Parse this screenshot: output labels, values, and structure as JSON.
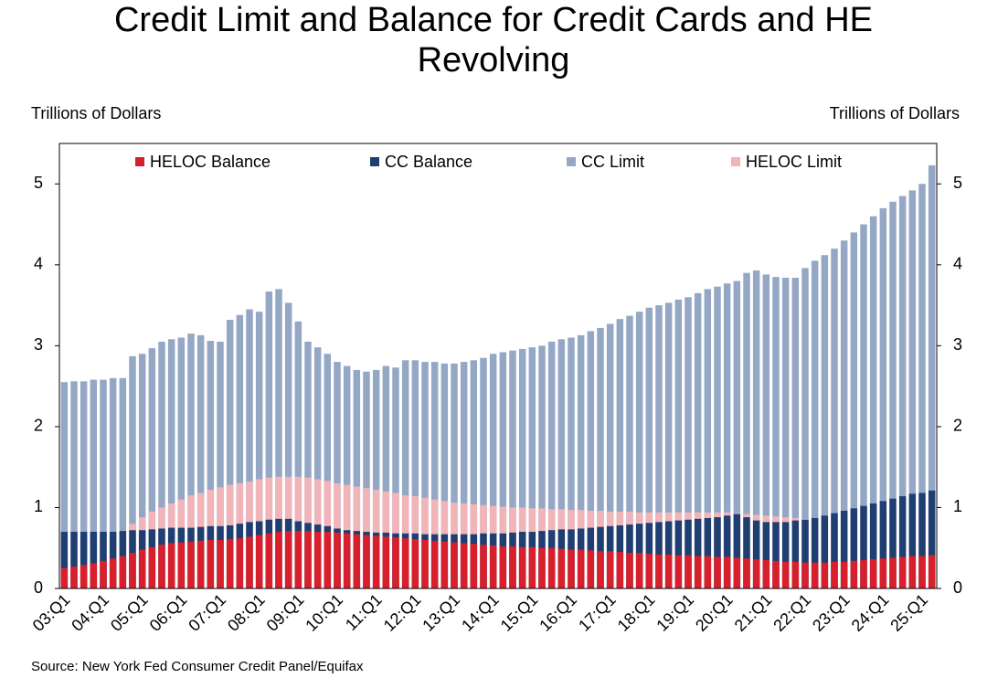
{
  "chart_data": {
    "type": "bar",
    "title": "Credit Limit and Balance for Credit Cards and HE Revolving",
    "y_label": "Trillions of Dollars",
    "y2_label": "Trillions of Dollars",
    "source": "Source: New York Fed Consumer Credit Panel/Equifax",
    "categories": [
      "03:Q1",
      null,
      null,
      null,
      "04:Q1",
      null,
      null,
      null,
      "05:Q1",
      null,
      null,
      null,
      "06:Q1",
      null,
      null,
      null,
      "07:Q1",
      null,
      null,
      null,
      "08:Q1",
      null,
      null,
      null,
      "09:Q1",
      null,
      null,
      null,
      "10:Q1",
      null,
      null,
      null,
      "11:Q1",
      null,
      null,
      null,
      "12:Q1",
      null,
      null,
      null,
      "13:Q1",
      null,
      null,
      null,
      "14:Q1",
      null,
      null,
      null,
      "15:Q1",
      null,
      null,
      null,
      "16:Q1",
      null,
      null,
      null,
      "17:Q1",
      null,
      null,
      null,
      "18:Q1",
      null,
      null,
      null,
      "19:Q1",
      null,
      null,
      null,
      "20:Q1",
      null,
      null,
      null,
      "21:Q1",
      null,
      null,
      null,
      "22:Q1",
      null,
      null,
      null,
      "23:Q1",
      null,
      null,
      null,
      "24:Q1",
      null,
      null,
      null,
      "25:Q1",
      null
    ],
    "series": [
      {
        "name": "HELOC Balance",
        "color": "#d7202b",
        "values": [
          0.25,
          0.27,
          0.29,
          0.31,
          0.34,
          0.37,
          0.4,
          0.44,
          0.48,
          0.51,
          0.54,
          0.56,
          0.57,
          0.58,
          0.59,
          0.6,
          0.6,
          0.61,
          0.62,
          0.64,
          0.66,
          0.68,
          0.7,
          0.71,
          0.71,
          0.71,
          0.7,
          0.7,
          0.69,
          0.68,
          0.67,
          0.66,
          0.65,
          0.64,
          0.63,
          0.62,
          0.61,
          0.6,
          0.59,
          0.58,
          0.57,
          0.56,
          0.55,
          0.54,
          0.53,
          0.52,
          0.52,
          0.51,
          0.51,
          0.5,
          0.5,
          0.49,
          0.48,
          0.48,
          0.47,
          0.46,
          0.46,
          0.45,
          0.44,
          0.44,
          0.43,
          0.42,
          0.42,
          0.41,
          0.41,
          0.4,
          0.4,
          0.39,
          0.39,
          0.38,
          0.37,
          0.36,
          0.35,
          0.34,
          0.33,
          0.33,
          0.32,
          0.32,
          0.32,
          0.33,
          0.33,
          0.34,
          0.35,
          0.36,
          0.37,
          0.38,
          0.39,
          0.4,
          0.4,
          0.41
        ]
      },
      {
        "name": "CC Balance",
        "color": "#1f3e72",
        "values": [
          0.7,
          0.7,
          0.7,
          0.7,
          0.7,
          0.7,
          0.71,
          0.72,
          0.72,
          0.73,
          0.74,
          0.75,
          0.75,
          0.75,
          0.76,
          0.77,
          0.77,
          0.78,
          0.8,
          0.82,
          0.83,
          0.85,
          0.86,
          0.86,
          0.83,
          0.81,
          0.79,
          0.77,
          0.74,
          0.72,
          0.71,
          0.7,
          0.69,
          0.69,
          0.68,
          0.68,
          0.68,
          0.67,
          0.67,
          0.67,
          0.67,
          0.67,
          0.67,
          0.68,
          0.68,
          0.68,
          0.69,
          0.7,
          0.7,
          0.71,
          0.72,
          0.73,
          0.73,
          0.74,
          0.75,
          0.76,
          0.77,
          0.78,
          0.79,
          0.8,
          0.81,
          0.82,
          0.83,
          0.84,
          0.85,
          0.86,
          0.87,
          0.88,
          0.9,
          0.92,
          0.88,
          0.84,
          0.82,
          0.82,
          0.82,
          0.84,
          0.85,
          0.87,
          0.9,
          0.93,
          0.96,
          0.99,
          1.02,
          1.05,
          1.08,
          1.11,
          1.14,
          1.17,
          1.18,
          1.21
        ]
      },
      {
        "name": "CC Limit",
        "color": "#94a7c5",
        "values": [
          2.55,
          2.56,
          2.56,
          2.58,
          2.58,
          2.6,
          2.6,
          2.87,
          2.9,
          2.97,
          3.05,
          3.08,
          3.1,
          3.15,
          3.13,
          3.06,
          3.05,
          3.32,
          3.38,
          3.45,
          3.42,
          3.67,
          3.7,
          3.53,
          3.3,
          3.05,
          2.98,
          2.9,
          2.8,
          2.75,
          2.7,
          2.68,
          2.7,
          2.75,
          2.73,
          2.82,
          2.82,
          2.8,
          2.8,
          2.78,
          2.78,
          2.8,
          2.82,
          2.85,
          2.9,
          2.92,
          2.94,
          2.96,
          2.98,
          3.0,
          3.05,
          3.08,
          3.1,
          3.13,
          3.18,
          3.22,
          3.27,
          3.33,
          3.37,
          3.42,
          3.47,
          3.5,
          3.53,
          3.57,
          3.6,
          3.65,
          3.7,
          3.73,
          3.77,
          3.8,
          3.9,
          3.93,
          3.88,
          3.85,
          3.84,
          3.84,
          3.96,
          4.05,
          4.12,
          4.2,
          4.3,
          4.4,
          4.5,
          4.6,
          4.7,
          4.78,
          4.85,
          4.92,
          5.0,
          5.23
        ]
      },
      {
        "name": "HELOC Limit",
        "color": "#f0b4b9",
        "values": [
          0.48,
          0.52,
          0.56,
          0.6,
          0.63,
          0.66,
          0.7,
          0.8,
          0.88,
          0.95,
          1.0,
          1.05,
          1.1,
          1.15,
          1.18,
          1.22,
          1.25,
          1.28,
          1.3,
          1.32,
          1.35,
          1.37,
          1.38,
          1.38,
          1.38,
          1.37,
          1.35,
          1.33,
          1.3,
          1.28,
          1.26,
          1.24,
          1.22,
          1.2,
          1.18,
          1.15,
          1.14,
          1.12,
          1.1,
          1.08,
          1.06,
          1.05,
          1.04,
          1.03,
          1.02,
          1.01,
          1.0,
          1.0,
          0.99,
          0.99,
          0.98,
          0.98,
          0.97,
          0.97,
          0.96,
          0.96,
          0.95,
          0.95,
          0.95,
          0.94,
          0.94,
          0.94,
          0.94,
          0.94,
          0.94,
          0.94,
          0.94,
          0.94,
          0.94,
          0.93,
          0.92,
          0.91,
          0.9,
          0.89,
          0.88,
          0.87,
          0.86,
          0.86,
          0.86,
          0.87,
          0.88,
          0.89,
          0.9,
          0.91,
          0.93,
          0.95,
          0.96,
          0.98,
          0.99,
          1.01
        ]
      }
    ],
    "draw_order": [
      2,
      3,
      1,
      0
    ],
    "ylim": [
      0,
      5.5
    ],
    "yticks": [
      0,
      1,
      2,
      3,
      4,
      5
    ],
    "y2lim": [
      0,
      5.5
    ],
    "y2ticks": [
      0,
      1,
      2,
      3,
      4,
      5
    ],
    "legend": "top"
  }
}
